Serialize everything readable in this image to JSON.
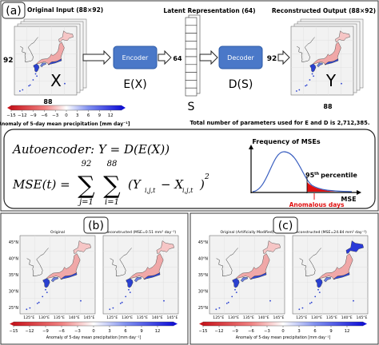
{
  "panel_a": {
    "label": "(a)",
    "input_title": "Original Input (88×92)",
    "latent_title": "Latent Representation (64)",
    "output_title": "Reconstructed Output (88×92)",
    "rows": "92",
    "cols": "88",
    "latent_size": "64",
    "x_symbol": "X",
    "ex_symbol": "E(X)",
    "s_symbol": "S",
    "ds_symbol": "D(S)",
    "y_symbol": "Y",
    "encoder": "Encoder",
    "decoder": "Decoder",
    "colorbar_ticks": [
      "−15",
      "−12",
      "−9",
      "−6",
      "−3",
      "0",
      "3",
      "6",
      "9",
      "12"
    ],
    "colorbar_label": "Anomaly of 5-day mean precipitation [mm day⁻¹]",
    "params_note": "Total number of parameters used for E and D is 2,712,385."
  },
  "formula": {
    "autoencoder": "Autoencoder: Y = D(E(X))",
    "mse_lhs": "MSE(t) =",
    "sum_symbol": "∑",
    "sum_j_upper": "92",
    "sum_j_lower": "j=1",
    "sum_i_upper": "88",
    "sum_i_lower": "i=1",
    "term_y": "(Y",
    "sub_y": "i,j,t",
    "term_x": "− X",
    "sub_x": "i,j,t",
    "close": ")",
    "power": "2"
  },
  "distribution": {
    "title": "Frequency of MSEs",
    "percentile_number": "95",
    "percentile_suffix": "th",
    "percentile_word": "percentile",
    "x_axis": "MSE",
    "anomalous": "Anomalous days"
  },
  "panel_b": {
    "label": "(b)",
    "left_title": "Original",
    "right_title": "Reconstructed (MSE=0.51 mm² day⁻²)",
    "lat_labels": [
      "45°N",
      "40°N",
      "35°N",
      "30°N",
      "25°N"
    ],
    "lon_labels": [
      "125°E",
      "130°E",
      "135°E",
      "140°E",
      "145°E"
    ],
    "colorbar_ticks": [
      "−15",
      "−12",
      "−9",
      "−6",
      "−3",
      "0",
      "3",
      "6",
      "9",
      "12"
    ],
    "colorbar_label": "Anomaly of 5-day mean precipitation [mm day⁻¹]"
  },
  "panel_c": {
    "label": "(c)",
    "left_title": "Original (Artificially Modified)",
    "right_title": "Reconstructed (MSE=24.84 mm² day⁻²)",
    "lat_labels": [
      "45°N",
      "40°N",
      "35°N",
      "30°N",
      "25°N"
    ],
    "lon_labels": [
      "125°E",
      "130°E",
      "135°E",
      "140°E",
      "145°E"
    ],
    "colorbar_ticks": [
      "−15",
      "−12",
      "−9",
      "−6",
      "−3",
      "0",
      "3",
      "6",
      "9",
      "12"
    ],
    "colorbar_label": "Anomaly of 5-day mean precipitation [mm day⁻¹]"
  }
}
